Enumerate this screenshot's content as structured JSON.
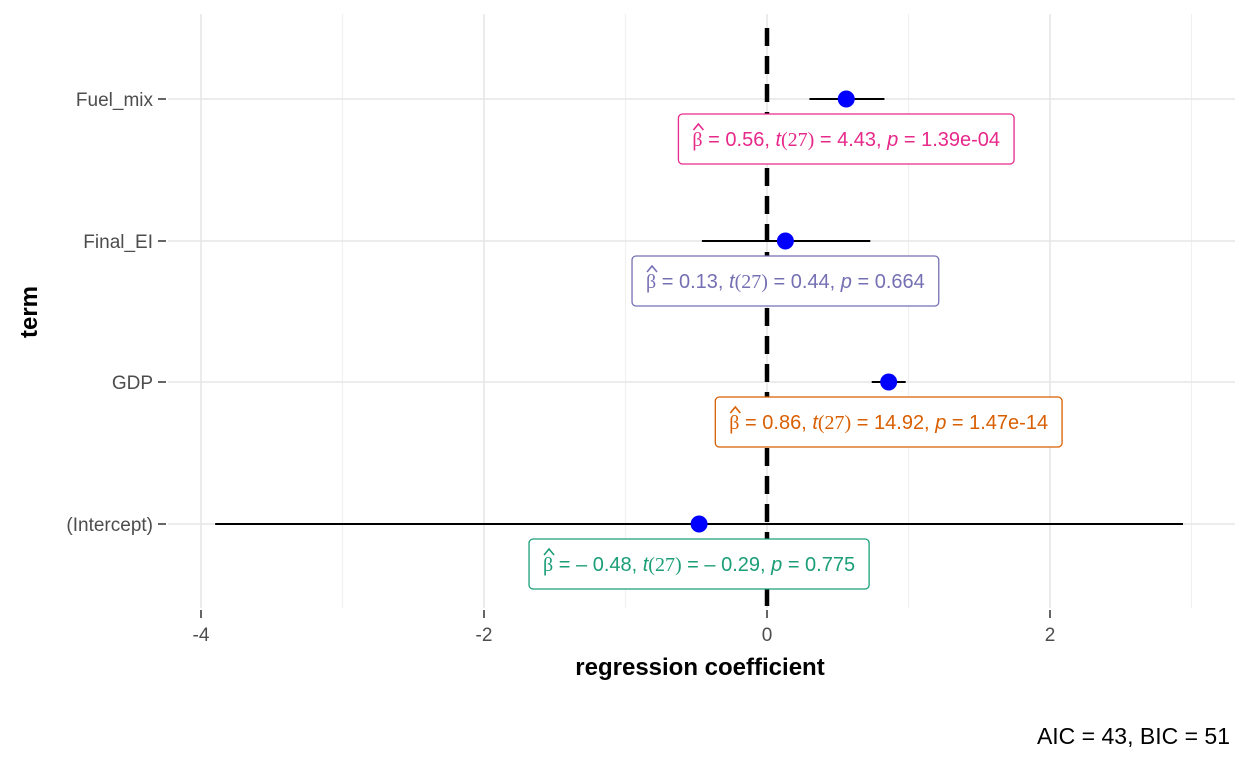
{
  "chart_data": {
    "type": "scatter",
    "subtype": "coefficient-plot",
    "xlabel": "regression coefficient",
    "ylabel": "term",
    "xlim": [
      -4.45,
      3.25
    ],
    "xticks": [
      -4,
      -2,
      0,
      2
    ],
    "xtick_labels": [
      "-4",
      "-2",
      "0",
      "2"
    ],
    "reference_line": 0,
    "grid": true,
    "caption": "AIC = 43, BIC = 51",
    "point_color": "#0000ff",
    "terms": [
      {
        "term": "Fuel_mix",
        "estimate": 0.56,
        "ci_low": 0.3,
        "ci_high": 0.83,
        "label_color": "#e7298a",
        "label": {
          "beta": "0.56",
          "df": "27",
          "t": "4.43",
          "p": "1.39e-04"
        }
      },
      {
        "term": "Final_EI",
        "estimate": 0.13,
        "ci_low": -0.46,
        "ci_high": 0.73,
        "label_color": "#7570b3",
        "label": {
          "beta": "0.13",
          "df": "27",
          "t": "0.44",
          "p": "0.664"
        }
      },
      {
        "term": "GDP",
        "estimate": 0.86,
        "ci_low": 0.74,
        "ci_high": 0.98,
        "label_color": "#d95f02",
        "label": {
          "beta": "0.86",
          "df": "27",
          "t": "14.92",
          "p": "1.47e-14"
        }
      },
      {
        "term": "(Intercept)",
        "estimate": -0.48,
        "ci_low": -3.9,
        "ci_high": 2.94,
        "label_color": "#1b9e77",
        "label": {
          "beta": "– 0.48",
          "df": "27",
          "t": "– 0.29",
          "p": "0.775"
        }
      }
    ]
  }
}
